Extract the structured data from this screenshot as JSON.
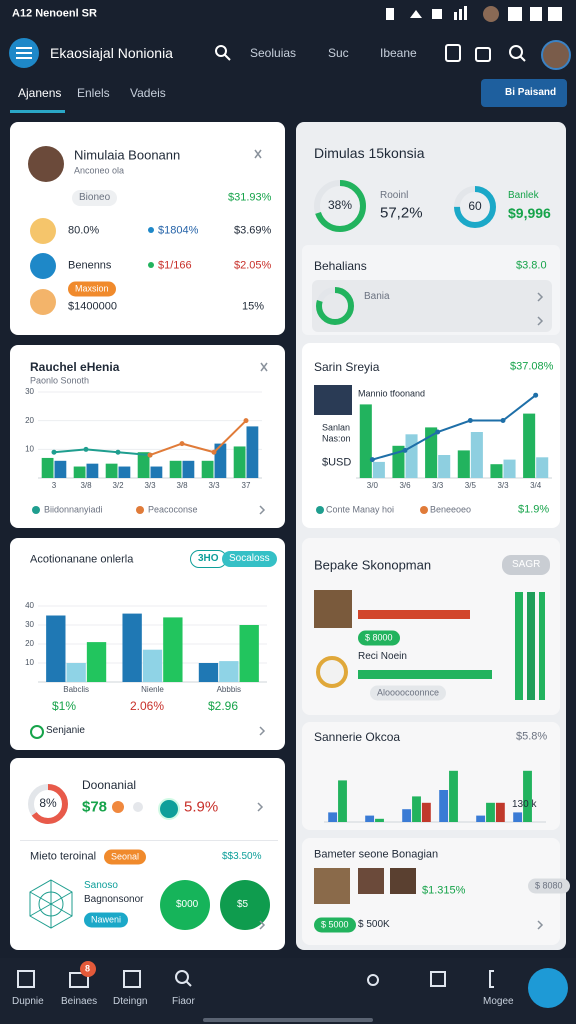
{
  "status_bar": {
    "left": "A12 Nenoenl SR"
  },
  "nav": {
    "title": "Ekaosiajal Nonionia",
    "links": [
      "Seoluias",
      "Suc",
      "Ibeane"
    ]
  },
  "tabs": [
    "Ajanens",
    "Enlels",
    "Vadeis"
  ],
  "action_button": "Bi Paisand",
  "profile_card": {
    "name": "Nimulaia Boonann",
    "subtitle": "Anconeo ola",
    "badge": "Bioneo",
    "total": "$31.93%",
    "rows": [
      {
        "label": "80.0%",
        "tag": "$1804%",
        "value": "$3.69%"
      },
      {
        "label": "Benenns",
        "tag": "$1/166",
        "value": "$2.05%"
      },
      {
        "pill": "Maxsion",
        "label": "$1400000",
        "value": "15%"
      }
    ]
  },
  "trend_card": {
    "title": "Rauchel eHenia",
    "subtitle": "Paonlo Sonoth",
    "chart": {
      "type": "bar",
      "categories": [
        "3",
        "3/8",
        "3/2",
        "3/3",
        "3/8",
        "3/3",
        "37"
      ],
      "ylim": [
        0,
        30
      ],
      "yticks": [
        10,
        20,
        30
      ],
      "grid": true,
      "series": [
        {
          "type": "bar",
          "color": "#22b35e",
          "values": [
            7,
            4,
            5,
            9,
            6,
            6,
            11
          ]
        },
        {
          "type": "bar",
          "color": "#1f78b4",
          "values": [
            6,
            5,
            4,
            4,
            6,
            12,
            18
          ]
        },
        {
          "name": "Biidonnanyiadi",
          "type": "line",
          "color": "#1f9e8f",
          "values": [
            9,
            10,
            9,
            8,
            null,
            null,
            null
          ]
        },
        {
          "name": "Peacoconse",
          "type": "line",
          "color": "#e07b39",
          "values": [
            null,
            null,
            null,
            8,
            12,
            9,
            20
          ]
        }
      ]
    }
  },
  "bar_card": {
    "title": "Acotionanane onlerla",
    "pills": [
      "3HO",
      "Socaloss"
    ],
    "chart": {
      "type": "bar",
      "categories": [
        "Babclis",
        "Nienle",
        "Abbbis"
      ],
      "ylim": [
        0,
        40
      ],
      "yticks": [
        10,
        20,
        30,
        40
      ],
      "grid": true,
      "series": [
        {
          "type": "bar",
          "color": "#1f78b4",
          "values": [
            35,
            36,
            10
          ]
        },
        {
          "type": "bar",
          "color": "#8fd3e6",
          "values": [
            10,
            17,
            11
          ]
        },
        {
          "type": "bar",
          "color": "#22c55e",
          "values": [
            21,
            34,
            30
          ]
        }
      ]
    },
    "totals": [
      "$1%",
      "2.06%",
      "$2.96"
    ],
    "footer": "Senjanie"
  },
  "summary_card": {
    "ring_label": "8%",
    "ring_value": 65,
    "title": "Doonanial",
    "amount": "$78",
    "change": "5.9%",
    "section": "Mieto teroinal",
    "badge": "Seonal",
    "section_value": "$$3.50%",
    "lines": [
      "Sanoso",
      "Bagnonsonor"
    ],
    "tag": "Naweni",
    "circles": [
      "$000",
      "$5"
    ]
  },
  "overview": {
    "title": "Dimulas 15konsia",
    "metrics": [
      {
        "ring_label": "38%",
        "ring_value": 70,
        "label": "Rooinl",
        "value": "57,2%"
      },
      {
        "ring_label": "60",
        "ring_value": 75,
        "label": "Banlek",
        "value": "$9,996"
      }
    ]
  },
  "balance": {
    "title": "Behalians",
    "value": "$3.8.0",
    "item": "Bania",
    "ring_value": 80
  },
  "sales": {
    "title": "Sarin Sreyia",
    "value": "$37.08%",
    "caption": "Mannio tfoonand",
    "side_labels": [
      "Sanlan",
      "Nas:on",
      "$USD"
    ],
    "chart": {
      "type": "bar",
      "categories": [
        "3/0",
        "3/6",
        "3/3",
        "3/5",
        "3/3",
        "3/4"
      ],
      "ylim": [
        0,
        40
      ],
      "series": [
        {
          "type": "bar",
          "color": "#22b35e",
          "values": [
            32,
            14,
            22,
            12,
            6,
            28
          ]
        },
        {
          "type": "bar",
          "color": "#8ecfe0",
          "values": [
            7,
            19,
            10,
            20,
            8,
            9
          ]
        },
        {
          "type": "line",
          "color": "#1e6fa8",
          "values": [
            8,
            12,
            20,
            25,
            25,
            36
          ]
        }
      ]
    },
    "legend": [
      {
        "label": "Conte Manay hoi",
        "color": "#1f9e8f"
      },
      {
        "label": "Beneeoeo",
        "color": "#e07b39"
      }
    ],
    "footer_value": "$1.9%"
  },
  "progress": {
    "title": "Bepake Skonopman",
    "button": "SAGR",
    "bars": [
      {
        "color": "#d2462b",
        "value": 80
      },
      {
        "color": "#22b35e",
        "value": 96
      }
    ],
    "pill": "$ 8000",
    "label": "Reci Noein",
    "caption": "Aloooocoonnce"
  },
  "mini": {
    "title": "Sannerie Okcoa",
    "value": "$5.8%",
    "note": "130 k",
    "chart": {
      "type": "bar",
      "categories": [
        null,
        null,
        null,
        null,
        null,
        null
      ],
      "ylim": [
        0,
        20
      ],
      "series": [
        {
          "type": "bar",
          "color": "#3a7bd5",
          "values": [
            3,
            2,
            4,
            10,
            2,
            3
          ]
        },
        {
          "type": "bar",
          "color": "#22b35e",
          "values": [
            13,
            1,
            8,
            16,
            6,
            16
          ]
        },
        {
          "type": "bar",
          "color": "#c0392b",
          "values": [
            0,
            0,
            6,
            0,
            6,
            0
          ]
        }
      ]
    }
  },
  "team": {
    "title": "Bameter seone Bonagian",
    "value": "$1.315%",
    "tag": "$ 8080",
    "pill": "$ 5000",
    "amount": "$ 500K"
  },
  "bottom_nav": {
    "items": [
      "Dupnie",
      "Beinaes",
      "Dteingn",
      "Fiaor",
      "Mogee"
    ],
    "badge": 8
  }
}
